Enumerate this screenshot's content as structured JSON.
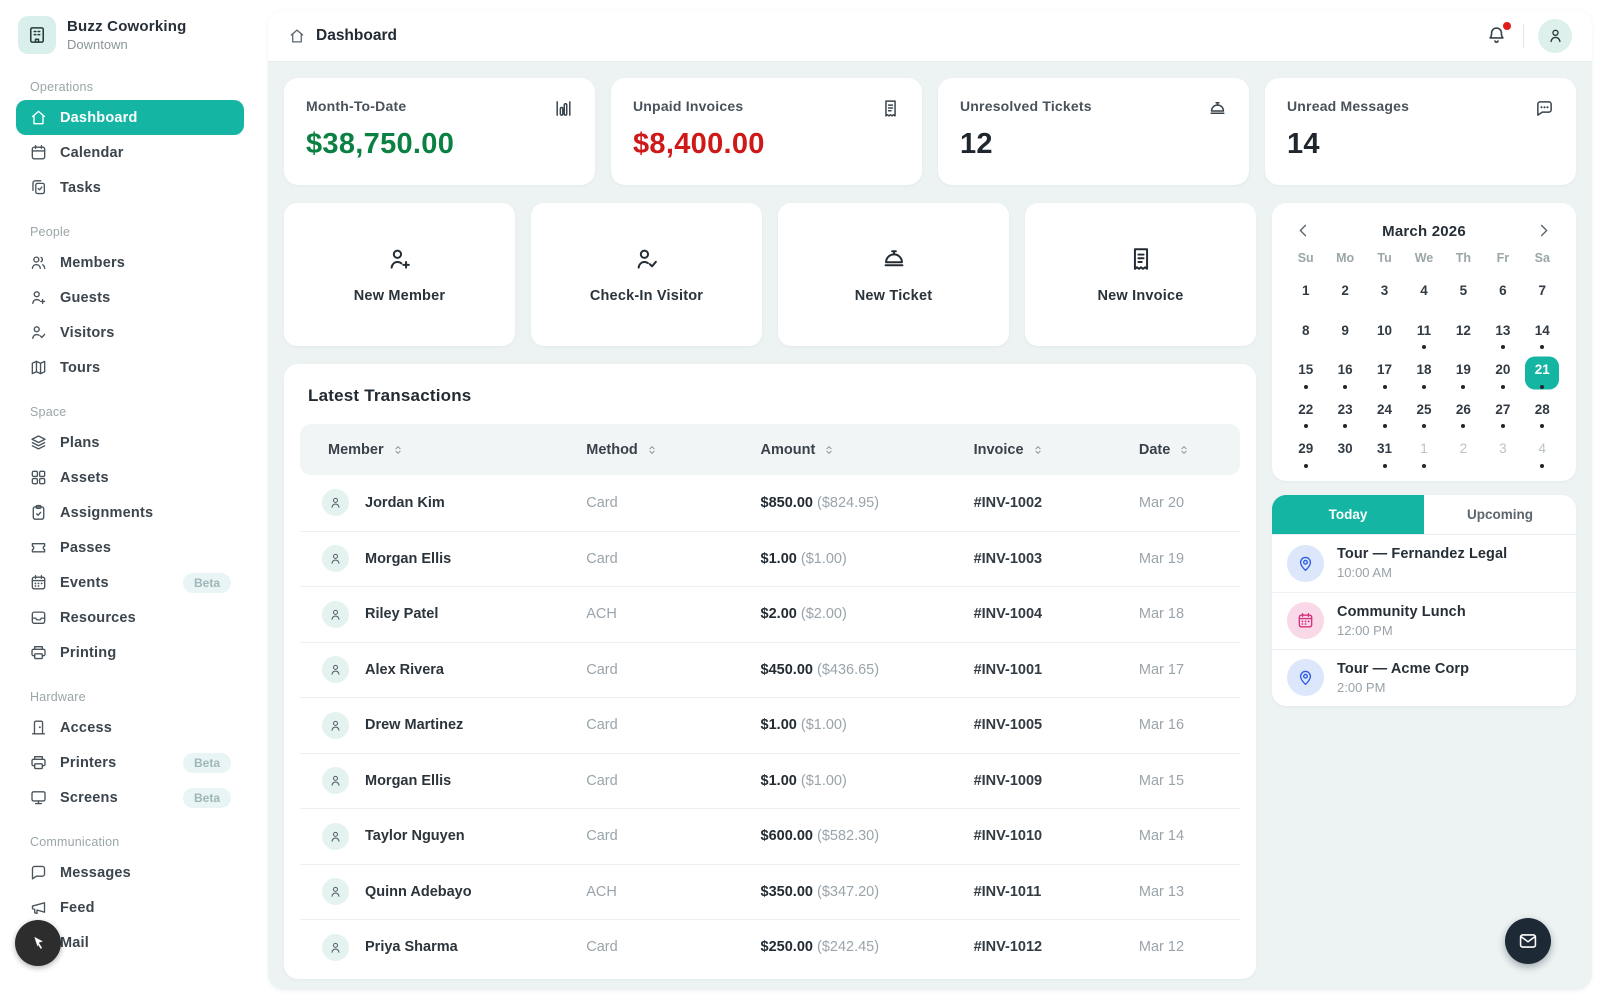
{
  "colors": {
    "accent_teal": "#14b5a3",
    "money_green": "#0b8043",
    "money_red": "#cf1818",
    "value_dark": "#20262e",
    "fab_navy": "#1e2936",
    "event_blue": "#2e5be6",
    "event_pink": "#d6307f"
  },
  "sidebar": {
    "org": {
      "name": "Buzz Coworking",
      "location": "Downtown",
      "icon": "building"
    },
    "sections": [
      {
        "label": "Operations",
        "items": [
          {
            "label": "Dashboard",
            "icon": "home",
            "active": true
          },
          {
            "label": "Calendar",
            "icon": "calendar"
          },
          {
            "label": "Tasks",
            "icon": "tasks"
          }
        ]
      },
      {
        "label": "People",
        "items": [
          {
            "label": "Members",
            "icon": "members"
          },
          {
            "label": "Guests",
            "icon": "person-plus"
          },
          {
            "label": "Visitors",
            "icon": "person-check"
          },
          {
            "label": "Tours",
            "icon": "map"
          }
        ]
      },
      {
        "label": "Space",
        "items": [
          {
            "label": "Plans",
            "icon": "layers"
          },
          {
            "label": "Assets",
            "icon": "grid"
          },
          {
            "label": "Assignments",
            "icon": "clipboard"
          },
          {
            "label": "Passes",
            "icon": "ticket"
          },
          {
            "label": "Events",
            "icon": "events",
            "badge": "Beta"
          },
          {
            "label": "Resources",
            "icon": "inbox"
          },
          {
            "label": "Printing",
            "icon": "printer"
          }
        ]
      },
      {
        "label": "Hardware",
        "items": [
          {
            "label": "Access",
            "icon": "door"
          },
          {
            "label": "Printers",
            "icon": "printer",
            "badge": "Beta"
          },
          {
            "label": "Screens",
            "icon": "monitor",
            "badge": "Beta"
          }
        ]
      },
      {
        "label": "Communication",
        "items": [
          {
            "label": "Messages",
            "icon": "chat"
          },
          {
            "label": "Feed",
            "icon": "megaphone"
          },
          {
            "label": "Mail",
            "icon": "mail"
          }
        ]
      }
    ]
  },
  "header": {
    "title": "Dashboard",
    "title_icon": "home",
    "bell_icon": "bell",
    "avatar_icon": "user",
    "has_notification": true
  },
  "stats": [
    {
      "label": "Month-To-Date",
      "value": "$38,750.00",
      "color": "#0b8043",
      "icon": "bar-chart"
    },
    {
      "label": "Unpaid Invoices",
      "value": "$8,400.00",
      "color": "#cf1818",
      "icon": "invoice"
    },
    {
      "label": "Unresolved Tickets",
      "value": "12",
      "color": "#20262e",
      "icon": "service-bell"
    },
    {
      "label": "Unread Messages",
      "value": "14",
      "color": "#20262e",
      "icon": "chat-dots"
    }
  ],
  "quick_actions": [
    {
      "label": "New Member",
      "icon": "person-plus"
    },
    {
      "label": "Check-In Visitor",
      "icon": "person-check"
    },
    {
      "label": "New Ticket",
      "icon": "service-bell"
    },
    {
      "label": "New Invoice",
      "icon": "invoice"
    }
  ],
  "transactions": {
    "title": "Latest Transactions",
    "columns": [
      "Member",
      "Method",
      "Amount",
      "Invoice",
      "Date"
    ],
    "rows": [
      {
        "member": "Jordan Kim",
        "method": "Card",
        "amount": "$850.00",
        "net": "($824.95)",
        "invoice": "#INV-1002",
        "date": "Mar 20"
      },
      {
        "member": "Morgan Ellis",
        "method": "Card",
        "amount": "$1.00",
        "net": "($1.00)",
        "invoice": "#INV-1003",
        "date": "Mar 19"
      },
      {
        "member": "Riley Patel",
        "method": "ACH",
        "amount": "$2.00",
        "net": "($2.00)",
        "invoice": "#INV-1004",
        "date": "Mar 18"
      },
      {
        "member": "Alex Rivera",
        "method": "Card",
        "amount": "$450.00",
        "net": "($436.65)",
        "invoice": "#INV-1001",
        "date": "Mar 17"
      },
      {
        "member": "Drew Martinez",
        "method": "Card",
        "amount": "$1.00",
        "net": "($1.00)",
        "invoice": "#INV-1005",
        "date": "Mar 16"
      },
      {
        "member": "Morgan Ellis",
        "method": "Card",
        "amount": "$1.00",
        "net": "($1.00)",
        "invoice": "#INV-1009",
        "date": "Mar 15"
      },
      {
        "member": "Taylor Nguyen",
        "method": "Card",
        "amount": "$600.00",
        "net": "($582.30)",
        "invoice": "#INV-1010",
        "date": "Mar 14"
      },
      {
        "member": "Quinn Adebayo",
        "method": "ACH",
        "amount": "$350.00",
        "net": "($347.20)",
        "invoice": "#INV-1011",
        "date": "Mar 13"
      },
      {
        "member": "Priya Sharma",
        "method": "Card",
        "amount": "$250.00",
        "net": "($242.45)",
        "invoice": "#INV-1012",
        "date": "Mar 12"
      }
    ]
  },
  "calendar": {
    "month": "March 2026",
    "weekdays": [
      "Su",
      "Mo",
      "Tu",
      "We",
      "Th",
      "Fr",
      "Sa"
    ],
    "days": [
      {
        "d": 1
      },
      {
        "d": 2
      },
      {
        "d": 3
      },
      {
        "d": 4
      },
      {
        "d": 5
      },
      {
        "d": 6
      },
      {
        "d": 7
      },
      {
        "d": 8
      },
      {
        "d": 9
      },
      {
        "d": 10
      },
      {
        "d": 11,
        "dot": true
      },
      {
        "d": 12
      },
      {
        "d": 13,
        "dot": true
      },
      {
        "d": 14,
        "dot": true
      },
      {
        "d": 15,
        "dot": true
      },
      {
        "d": 16,
        "dot": true
      },
      {
        "d": 17,
        "dot": true
      },
      {
        "d": 18,
        "dot": true
      },
      {
        "d": 19,
        "dot": true
      },
      {
        "d": 20,
        "dot": true
      },
      {
        "d": 21,
        "dot": true,
        "selected": true
      },
      {
        "d": 22,
        "dot": true
      },
      {
        "d": 23,
        "dot": true
      },
      {
        "d": 24,
        "dot": true
      },
      {
        "d": 25,
        "dot": true
      },
      {
        "d": 26,
        "dot": true
      },
      {
        "d": 27,
        "dot": true
      },
      {
        "d": 28,
        "dot": true
      },
      {
        "d": 29,
        "dot": true
      },
      {
        "d": 30
      },
      {
        "d": 31,
        "dot": true
      },
      {
        "d": 1,
        "muted": true,
        "dot": true
      },
      {
        "d": 2,
        "muted": true
      },
      {
        "d": 3,
        "muted": true
      },
      {
        "d": 4,
        "muted": true,
        "dot": true
      }
    ]
  },
  "events": {
    "tabs": [
      "Today",
      "Upcoming"
    ],
    "active_tab": "Today",
    "items": [
      {
        "title": "Tour — Fernandez Legal",
        "time": "10:00 AM",
        "icon": "pin",
        "color": "blue"
      },
      {
        "title": "Community Lunch",
        "time": "12:00 PM",
        "icon": "events",
        "color": "pink"
      },
      {
        "title": "Tour — Acme Corp",
        "time": "2:00 PM",
        "icon": "pin",
        "color": "blue"
      }
    ]
  },
  "floating": {
    "cursor_button_icon": "cursor",
    "mail_button_icon": "mail"
  }
}
